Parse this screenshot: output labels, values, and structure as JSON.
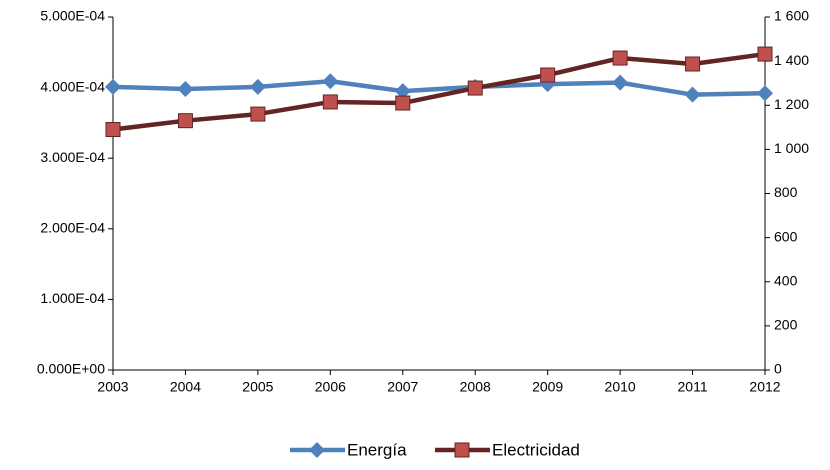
{
  "chart_data": {
    "type": "line",
    "categories": [
      "2003",
      "2004",
      "2005",
      "2006",
      "2007",
      "2008",
      "2009",
      "2010",
      "2011",
      "2012"
    ],
    "series": [
      {
        "name": "Energía",
        "color": "#4f81bd",
        "marker": "diamond",
        "marker_color": "#4f81bd",
        "axis": "y",
        "values": [
          0.000401,
          0.000398,
          0.000401,
          0.000409,
          0.000395,
          0.000401,
          0.000405,
          0.000407,
          0.00039,
          0.000392
        ]
      },
      {
        "name": "Electricidad",
        "color": "#632523",
        "marker": "square",
        "marker_color": "#c0504d",
        "axis": "y2",
        "values": [
          1090,
          1130,
          1160,
          1215,
          1210,
          1278,
          1337,
          1414,
          1387,
          1432
        ]
      }
    ],
    "ylim": [
      0,
      0.0005
    ],
    "yticks": [
      {
        "value": 0,
        "label": "0.000E+00"
      },
      {
        "value": 0.0001,
        "label": "1.000E-04"
      },
      {
        "value": 0.0002,
        "label": "2.000E-04"
      },
      {
        "value": 0.0003,
        "label": "3.000E-04"
      },
      {
        "value": 0.0004,
        "label": "4.000E-04"
      },
      {
        "value": 0.0005,
        "label": "5.000E-04"
      }
    ],
    "y2lim": [
      0,
      1600
    ],
    "y2ticks": [
      0,
      200,
      400,
      600,
      800,
      {
        "value": 1000,
        "label": "1 000"
      },
      {
        "value": 1200,
        "label": "1 200"
      },
      {
        "value": 1400,
        "label": "1 400"
      },
      {
        "value": 1600,
        "label": "1 600"
      }
    ],
    "grid": false,
    "legend": "bottom"
  }
}
